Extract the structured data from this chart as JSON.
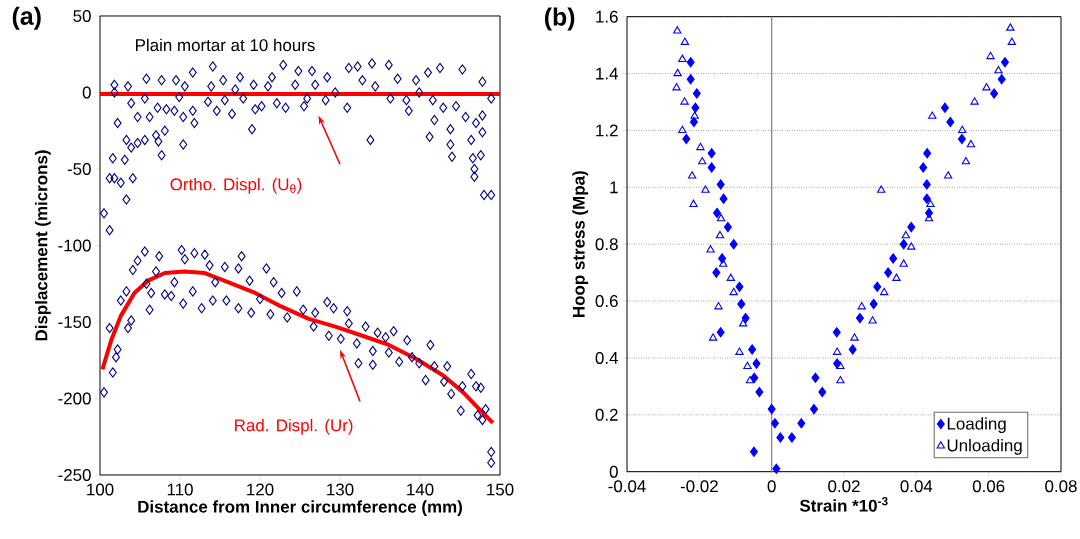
{
  "chart_data": [
    {
      "type": "scatter",
      "title": "(a)",
      "xlabel": "Distance from Inner circumference (mm)",
      "ylabel": "Displacement (microns)",
      "xlim": [
        100,
        150
      ],
      "xticks": [
        100,
        110,
        120,
        130,
        140,
        150
      ],
      "ylim": [
        -250,
        50
      ],
      "yticks": [
        -250,
        -200,
        -150,
        -100,
        -50,
        0,
        50
      ],
      "marker": "diamond",
      "annotations": [
        "Plain mortar at 10 hours",
        "Ortho. Displ. (U$_{θ}$)",
        "Rad. Displ. (Ur)"
      ],
      "series": [
        {
          "type": "scatter",
          "color": "#000080",
          "x": [
            100.5,
            101.2,
            101.2,
            101.8,
            102.6,
            103.3,
            104.1,
            101.8,
            101.8,
            101.6,
            103.1,
            102.2,
            103.3,
            103.9,
            104.7,
            105.6,
            107,
            108.1,
            107.3,
            107.7,
            110.4,
            103.5,
            103.9,
            104.7,
            105.6,
            105.8,
            106.2,
            107.2,
            107.7,
            108.3,
            109.3,
            109.5,
            109.9,
            110.4,
            110.6,
            111.6,
            111.6,
            111.8,
            113.5,
            113.9,
            114.1,
            114.6,
            115.4,
            115.6,
            116.5,
            116.9,
            117.5,
            117.9,
            119,
            119.2,
            119.4,
            120.2,
            121,
            121.5,
            122.1,
            122.9,
            123.2,
            124.4,
            124.8,
            125.5,
            125.9,
            126.5,
            126.9,
            128.2,
            128.4,
            129.4,
            130.9,
            131.1,
            132.2,
            132.8,
            133.8,
            134,
            134.4,
            136.1,
            136.3,
            137.2,
            138.3,
            138.6,
            139.5,
            139.9,
            141,
            141.2,
            141.6,
            141.8,
            142.5,
            142.9,
            143.8,
            143.8,
            144,
            144.5,
            145.3,
            145.7,
            146.4,
            146.6,
            146.8,
            146.8,
            147,
            147.8,
            147.8,
            147.6,
            147.8,
            148,
            148.9,
            148.9
          ],
          "values": [
            -79,
            -90,
            -56,
            -56,
            -59,
            -70,
            -56,
            5,
            0,
            -43,
            -44,
            -20,
            -31,
            -36,
            -33,
            -31,
            -28,
            -25,
            -32,
            -41,
            -34,
            4,
            -7,
            -16,
            -4,
            9,
            -16,
            -10,
            8,
            -11,
            -12,
            8,
            -3,
            -16,
            4,
            13,
            -12,
            -20,
            -6,
            4,
            17,
            -12,
            8,
            -5,
            -14,
            2,
            10,
            -4,
            -24,
            5,
            -11,
            -9,
            4,
            10,
            -7,
            18,
            -10,
            5,
            14,
            -9,
            -4,
            14,
            5,
            -5,
            10,
            0,
            -10,
            16,
            17,
            8,
            -31,
            19,
            4,
            18,
            -4,
            9,
            -5,
            -12,
            8,
            0,
            13,
            -29,
            -5,
            -18,
            16,
            -10,
            -24,
            -34,
            -42,
            -9,
            15,
            -16,
            -31,
            -43,
            -50,
            -55,
            -20,
            -15,
            -26,
            -41,
            7,
            -67,
            -67,
            -4
          ]
        },
        {
          "type": "scatter",
          "color": "#000080",
          "x": [
            100.5,
            101.2,
            101.6,
            102,
            102.2,
            102.6,
            103.3,
            103.5,
            103.9,
            104.1,
            104.7,
            105.6,
            105.8,
            106.2,
            106.4,
            107,
            107.4,
            108.1,
            108.9,
            109.3,
            110.2,
            110.4,
            110.6,
            111.6,
            111.8,
            112.7,
            113.1,
            113.7,
            114.1,
            114.4,
            115.6,
            115.8,
            117.3,
            117.3,
            117.7,
            118.7,
            118.9,
            120,
            120.8,
            121.3,
            121.7,
            122.7,
            123.4,
            124.6,
            125.4,
            126.7,
            126.9,
            128.4,
            128.6,
            129.2,
            130.1,
            130.9,
            131.1,
            132.1,
            132.3,
            133.2,
            134.1,
            134.1,
            134.7,
            135.7,
            136.1,
            136.7,
            137.4,
            138.4,
            139,
            139.9,
            140.7,
            141.3,
            141.8,
            143,
            143.4,
            143.9,
            145.1,
            145.3,
            146.4,
            147,
            147.6,
            147.2,
            147.8,
            148.2,
            148.9,
            148.9
          ],
          "values": [
            -196,
            -154,
            -183,
            -173,
            -168,
            -136,
            -130,
            -154,
            -149,
            -116,
            -110,
            -104,
            -125,
            -142,
            -131,
            -117,
            -107,
            -132,
            -133,
            -124,
            -103,
            -138,
            -109,
            -130,
            -105,
            -141,
            -106,
            -113,
            -136,
            -124,
            -114,
            -136,
            -115,
            -141,
            -107,
            -123,
            -144,
            -135,
            -115,
            -145,
            -124,
            -131,
            -147,
            -130,
            -142,
            -153,
            -144,
            -137,
            -159,
            -141,
            -161,
            -143,
            -151,
            -164,
            -177,
            -153,
            -178,
            -169,
            -157,
            -160,
            -170,
            -156,
            -176,
            -162,
            -173,
            -177,
            -188,
            -165,
            -179,
            -189,
            -179,
            -197,
            -208,
            -192,
            -184,
            -192,
            -193,
            -211,
            -214,
            -207,
            -235,
            -242
          ]
        },
        {
          "type": "line",
          "color": "#ff0000",
          "marker": "none",
          "x": [
            100,
            150
          ],
          "values": [
            -1,
            -1
          ]
        },
        {
          "type": "line",
          "color": "#ff0000",
          "marker": "none",
          "x": [
            100.3,
            101.4,
            102.6,
            104.3,
            106,
            108.1,
            110.6,
            113.1,
            116,
            119.4,
            122.7,
            126.1,
            129.4,
            132.8,
            136.1,
            139.5,
            142.9,
            145.4,
            147.4,
            149.1
          ],
          "values": [
            -181,
            -162,
            -146,
            -131,
            -123,
            -118,
            -117,
            -118,
            -124,
            -131,
            -140,
            -148,
            -153,
            -159,
            -165,
            -174,
            -185,
            -196,
            -207,
            -216
          ]
        }
      ]
    },
    {
      "type": "scatter",
      "title": "(b)",
      "xlabel": "Strain *10$^{-3}$",
      "ylabel": "Hoop stress (Mpa)",
      "xlim": [
        -0.04,
        0.08
      ],
      "xticks": [
        -0.04,
        -0.02,
        0,
        0.02,
        0.04,
        0.06,
        0.08
      ],
      "ylim": [
        0,
        1.6
      ],
      "yticks": [
        0,
        0.2,
        0.4,
        0.6,
        0.8,
        1,
        1.2,
        1.4,
        1.6
      ],
      "grid": "y",
      "legend": "bottom right",
      "ref_lines": [
        {
          "axis": "x",
          "value": 0,
          "color": "#808080"
        }
      ],
      "series": [
        {
          "name": "Loading",
          "type": "scatter",
          "color": "#0000ff",
          "marker": "diamond",
          "x": [
            -0.0224,
            -0.0224,
            -0.0207,
            -0.0211,
            -0.0215,
            -0.0236,
            -0.0166,
            -0.0166,
            -0.0141,
            -0.0133,
            -0.0151,
            -0.0121,
            -0.0105,
            -0.0137,
            -0.0153,
            -0.0089,
            -0.0084,
            -0.0072,
            -0.0141,
            -0.0054,
            -0.0042,
            -0.0048,
            -0.0034,
            0,
            0.0009,
            -0.0049,
            0.0013,
            0.0024,
            0.0056,
            0.0082,
            0.0117,
            0.014,
            0.0121,
            0.0181,
            0.018,
            0.0224,
            0.0244,
            0.0282,
            0.0292,
            0.0322,
            0.0336,
            0.0365,
            0.0386,
            0.0435,
            0.0429,
            0.0429,
            0.0419,
            0.043,
            0.0479,
            0.0494,
            0.0526,
            0.0615,
            0.0636,
            0.0645
          ],
          "values": [
            1.44,
            1.38,
            1.33,
            1.28,
            1.23,
            1.17,
            1.12,
            1.07,
            1.01,
            0.96,
            0.91,
            0.86,
            0.8,
            0.75,
            0.7,
            0.65,
            0.59,
            0.54,
            0.49,
            0.43,
            0.38,
            0.33,
            0.28,
            0.22,
            0.17,
            0.07,
            0.01,
            0.12,
            0.12,
            0.17,
            0.22,
            0.28,
            0.33,
            0.38,
            0.49,
            0.43,
            0.54,
            0.59,
            0.65,
            0.7,
            0.75,
            0.8,
            0.86,
            0.91,
            0.96,
            1.01,
            1.07,
            1.12,
            1.28,
            1.23,
            1.17,
            1.33,
            1.38,
            1.44
          ]
        },
        {
          "name": "Unloading",
          "type": "scatter",
          "color": "#0000ff",
          "marker": "triangle",
          "x": [
            -0.0261,
            -0.024,
            -0.0247,
            -0.026,
            -0.0263,
            -0.0241,
            -0.0213,
            -0.0247,
            -0.0197,
            -0.0192,
            -0.022,
            -0.0183,
            -0.0216,
            -0.014,
            -0.0143,
            -0.0169,
            -0.0134,
            -0.0113,
            -0.0105,
            -0.0147,
            -0.0079,
            -0.0162,
            -0.0089,
            -0.0067,
            -0.006,
            0.0181,
            0.019,
            0.019,
            0.0229,
            0.0249,
            0.0279,
            0.0311,
            0.0345,
            0.0365,
            0.0386,
            0.0371,
            0.0435,
            0.0439,
            0.0303,
            0.0488,
            0.0537,
            0.0551,
            0.0527,
            0.0444,
            0.0561,
            0.0594,
            0.0627,
            0.0605,
            0.0664,
            0.066
          ],
          "values": [
            1.55,
            1.51,
            1.45,
            1.4,
            1.35,
            1.3,
            1.25,
            1.2,
            1.14,
            1.09,
            1.04,
            0.99,
            0.94,
            0.89,
            0.83,
            0.78,
            0.73,
            0.68,
            0.63,
            0.58,
            0.52,
            0.47,
            0.42,
            0.37,
            0.32,
            0.42,
            0.37,
            0.32,
            0.47,
            0.58,
            0.53,
            0.63,
            0.68,
            0.73,
            0.79,
            0.83,
            0.89,
            0.94,
            0.99,
            1.04,
            1.09,
            1.15,
            1.2,
            1.25,
            1.3,
            1.35,
            1.41,
            1.46,
            1.51,
            1.56
          ]
        }
      ]
    }
  ]
}
